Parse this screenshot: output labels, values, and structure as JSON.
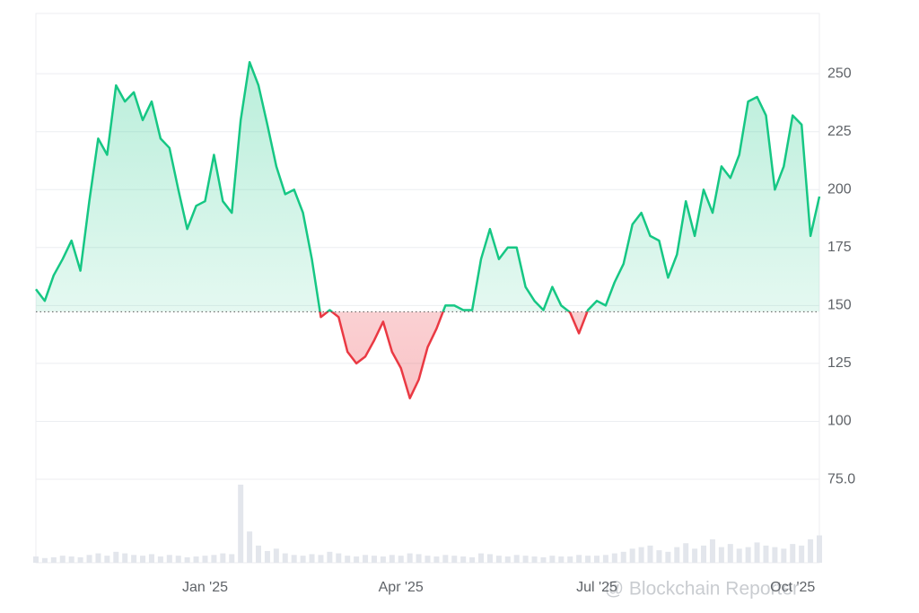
{
  "chart_data": {
    "type": "baseline",
    "categories": [
      null,
      null,
      null,
      null,
      null,
      null,
      null,
      null,
      null,
      null,
      null,
      null,
      null,
      null,
      null,
      null,
      null,
      null,
      null,
      "Jan '25",
      null,
      null,
      null,
      null,
      null,
      null,
      null,
      null,
      null,
      null,
      null,
      null,
      null,
      null,
      null,
      null,
      null,
      null,
      null,
      null,
      null,
      "Apr '25",
      null,
      null,
      null,
      null,
      null,
      null,
      null,
      null,
      null,
      null,
      null,
      null,
      null,
      null,
      null,
      null,
      null,
      null,
      null,
      null,
      null,
      "Jul '25",
      null,
      null,
      null,
      null,
      null,
      null,
      null,
      null,
      null,
      null,
      null,
      null,
      null,
      null,
      null,
      null,
      null,
      null,
      null,
      null,
      null,
      "Oct '25",
      null,
      null,
      null
    ],
    "series": [
      {
        "values": [
          157,
          152,
          163,
          170,
          178,
          165,
          195,
          222,
          215,
          245,
          238,
          242,
          230,
          238,
          222,
          218,
          200,
          183,
          193,
          195,
          215,
          195,
          190,
          230,
          255,
          245,
          228,
          210,
          198,
          200,
          190,
          170,
          145,
          148,
          145,
          130,
          125,
          128,
          135,
          143,
          130,
          123,
          110,
          118,
          132,
          140,
          150,
          150,
          148,
          148,
          170,
          183,
          170,
          175,
          175,
          158,
          152,
          148,
          158,
          150,
          147,
          138,
          148,
          152,
          150,
          160,
          168,
          185,
          190,
          180,
          178,
          162,
          172,
          195,
          180,
          200,
          190,
          210,
          205,
          215,
          238,
          240,
          232,
          200,
          210,
          232,
          228,
          180,
          197
        ],
        "color_up": "#16c784",
        "color_down": "#ea3943"
      }
    ],
    "volume": [
      8,
      6,
      7,
      9,
      8,
      7,
      10,
      12,
      9,
      14,
      12,
      10,
      9,
      11,
      8,
      10,
      9,
      7,
      8,
      9,
      10,
      12,
      11,
      100,
      40,
      22,
      15,
      18,
      12,
      10,
      9,
      11,
      10,
      14,
      12,
      9,
      8,
      10,
      9,
      8,
      10,
      9,
      12,
      11,
      9,
      8,
      10,
      9,
      8,
      7,
      12,
      11,
      9,
      8,
      10,
      9,
      8,
      7,
      9,
      8,
      8,
      10,
      9,
      9,
      10,
      12,
      14,
      18,
      20,
      22,
      16,
      14,
      20,
      25,
      18,
      22,
      30,
      20,
      24,
      18,
      20,
      26,
      22,
      20,
      18,
      24,
      22,
      30,
      35
    ],
    "volume_lim": [
      0,
      100
    ],
    "volume_color": "#e3e6ec",
    "baseline": 147.3,
    "ylim": [
      39,
      276
    ],
    "yticks": [
      {
        "value": 75,
        "label": "75.0"
      },
      100,
      125,
      150,
      175,
      200,
      225,
      250
    ],
    "grid": true,
    "watermark": "@ Blockchain Reporter"
  }
}
